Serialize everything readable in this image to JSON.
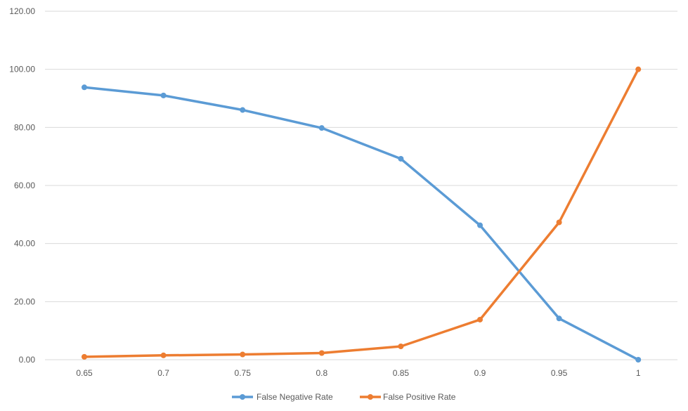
{
  "chart_data": {
    "type": "line",
    "title": "",
    "xlabel": "",
    "ylabel": "",
    "categories": [
      "0.65",
      "0.7",
      "0.75",
      "0.8",
      "0.85",
      "0.9",
      "0.95",
      "1"
    ],
    "ylim": [
      0,
      120
    ],
    "yticks": [
      "0.00",
      "20.00",
      "40.00",
      "60.00",
      "80.00",
      "100.00",
      "120.00"
    ],
    "grid": true,
    "legend_position": "bottom",
    "series": [
      {
        "name": "False Negative Rate",
        "color": "#5b9bd5",
        "values": [
          93.8,
          91.0,
          86.0,
          79.8,
          69.2,
          46.3,
          14.2,
          0.0
        ]
      },
      {
        "name": "False Positive Rate",
        "color": "#ed7d31",
        "values": [
          1.0,
          1.5,
          1.8,
          2.3,
          4.6,
          13.8,
          47.3,
          100.0
        ]
      }
    ]
  }
}
